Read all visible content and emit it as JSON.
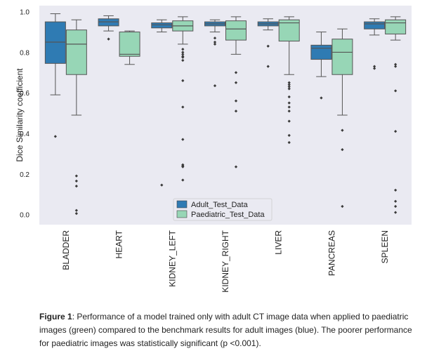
{
  "chart_data": {
    "type": "box",
    "ylabel": "Dice Similarity coefficient",
    "xlabel": "",
    "ylim": [
      -0.05,
      1.03
    ],
    "yticks": [
      0.0,
      0.2,
      0.4,
      0.6,
      0.8,
      1.0
    ],
    "grid": false,
    "legend_position": "bottom-center",
    "categories": [
      "BLADDER",
      "HEART",
      "KIDNEY_LEFT",
      "KIDNEY_RIGHT",
      "LIVER",
      "PANCREAS",
      "SPLEEN"
    ],
    "series": [
      {
        "name": "Adult_Test_Data",
        "color": "#2f7bb3",
        "boxes": [
          {
            "whislo": 0.59,
            "q1": 0.745,
            "med": 0.85,
            "q3": 0.95,
            "whishi": 0.99,
            "fliers": [
              0.385
            ]
          },
          {
            "whislo": 0.905,
            "q1": 0.93,
            "med": 0.95,
            "q3": 0.965,
            "whishi": 0.98,
            "fliers": [
              0.865
            ]
          },
          {
            "whislo": 0.9,
            "q1": 0.92,
            "med": 0.935,
            "q3": 0.945,
            "whishi": 0.96,
            "fliers": [
              0.145
            ]
          },
          {
            "whislo": 0.9,
            "q1": 0.93,
            "med": 0.94,
            "q3": 0.95,
            "whishi": 0.96,
            "fliers": [
              0.87,
              0.85,
              0.84,
              0.635
            ]
          },
          {
            "whislo": 0.91,
            "q1": 0.93,
            "med": 0.94,
            "q3": 0.95,
            "whishi": 0.965,
            "fliers": [
              0.83,
              0.73
            ]
          },
          {
            "whislo": 0.68,
            "q1": 0.765,
            "med": 0.82,
            "q3": 0.835,
            "whishi": 0.9,
            "fliers": [
              0.575
            ]
          },
          {
            "whislo": 0.885,
            "q1": 0.915,
            "med": 0.94,
            "q3": 0.95,
            "whishi": 0.965,
            "fliers": [
              0.73,
              0.72
            ]
          }
        ]
      },
      {
        "name": "Paediatric_Test_Data",
        "color": "#97d6b6",
        "boxes": [
          {
            "whislo": 0.49,
            "q1": 0.69,
            "med": 0.84,
            "q3": 0.91,
            "whishi": 0.96,
            "fliers": [
              0.19,
              0.165,
              0.14,
              0.02,
              0.005
            ]
          },
          {
            "whislo": 0.74,
            "q1": 0.78,
            "med": 0.79,
            "q3": 0.9,
            "whishi": 0.905,
            "fliers": []
          },
          {
            "whislo": 0.84,
            "q1": 0.905,
            "med": 0.93,
            "q3": 0.955,
            "whishi": 0.975,
            "fliers": [
              0.815,
              0.8,
              0.79,
              0.78,
              0.775,
              0.76,
              0.66,
              0.53,
              0.37,
              0.245,
              0.24,
              0.235,
              0.17
            ]
          },
          {
            "whislo": 0.79,
            "q1": 0.86,
            "med": 0.915,
            "q3": 0.955,
            "whishi": 0.975,
            "fliers": [
              0.7,
              0.65,
              0.56,
              0.51,
              0.235
            ]
          },
          {
            "whislo": 0.69,
            "q1": 0.855,
            "med": 0.945,
            "q3": 0.96,
            "whishi": 0.975,
            "fliers": [
              0.65,
              0.64,
              0.63,
              0.62,
              0.58,
              0.55,
              0.53,
              0.51,
              0.46,
              0.39,
              0.355
            ]
          },
          {
            "whislo": 0.49,
            "q1": 0.69,
            "med": 0.8,
            "q3": 0.865,
            "whishi": 0.915,
            "fliers": [
              0.415,
              0.32,
              0.04
            ]
          },
          {
            "whislo": 0.86,
            "q1": 0.89,
            "med": 0.945,
            "q3": 0.96,
            "whishi": 0.975,
            "fliers": [
              0.74,
              0.73,
              0.61,
              0.41,
              0.12,
              0.065,
              0.04,
              0.01
            ]
          }
        ]
      }
    ]
  },
  "caption": {
    "label": "Figure 1",
    "text": ": Performance of a model trained only with adult CT image data when applied to paediatric images (green) compared to the benchmark results for adult images (blue). The poorer performance for paediatric images was statistically significant (p <0.001)."
  }
}
